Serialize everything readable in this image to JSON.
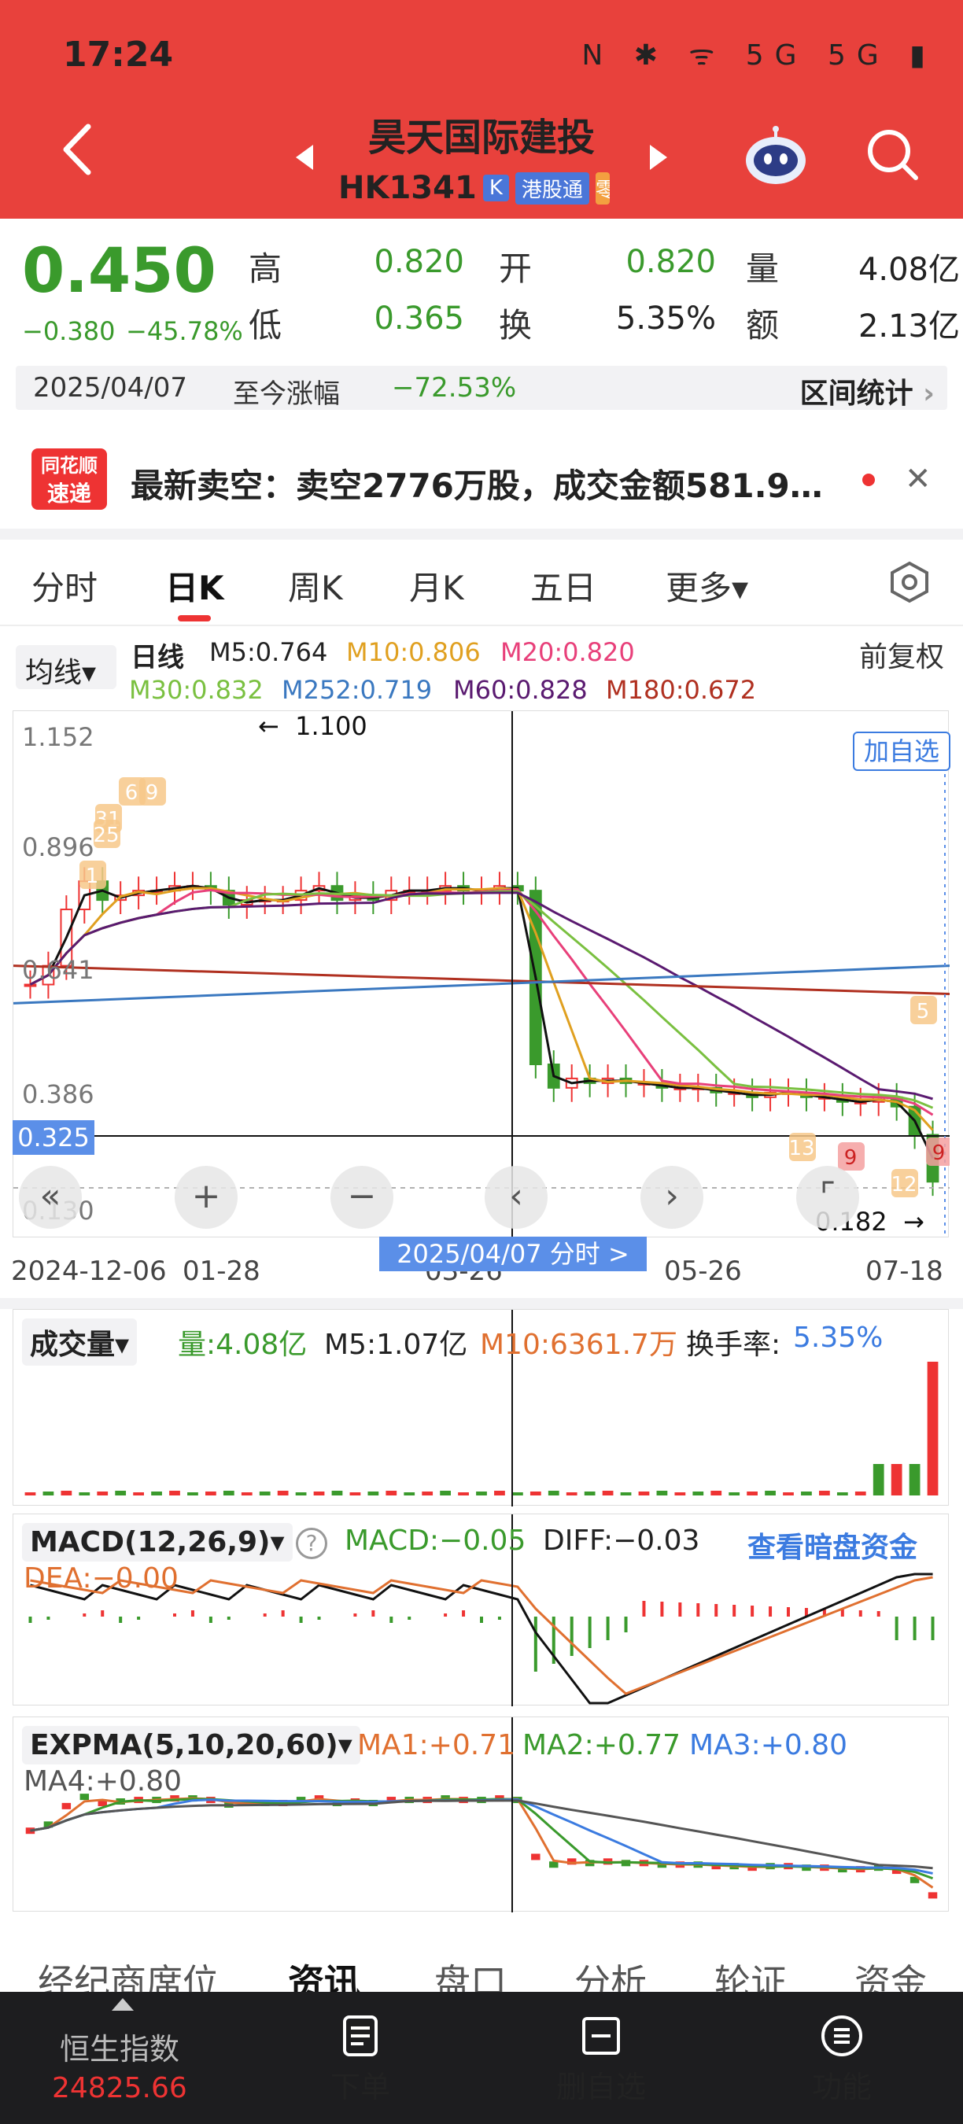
{
  "status": {
    "time": "17:24",
    "icons": "N ✱ ᯤ 5G 5G ▮"
  },
  "header": {
    "stock_name": "昊天国际建投",
    "stock_code": "HK1341",
    "badge_hk": "K",
    "badge_connect": "港股通",
    "badge_extra": "零"
  },
  "quote": {
    "last_price": "0.450",
    "change_abs": "−0.380",
    "change_pct": "−45.78%",
    "high_label": "高",
    "high": "0.820",
    "low_label": "低",
    "low": "0.365",
    "open_label": "开",
    "open": "0.820",
    "turnover_label": "换",
    "turnover": "5.35%",
    "volume_label": "量",
    "volume": "4.08亿",
    "amount_label": "额",
    "amount": "2.13亿"
  },
  "range": {
    "start_date": "2025/04/07",
    "change_label": "至今涨幅",
    "change_value": "−72.53%",
    "stats_label": "区间统计"
  },
  "news": {
    "logo_line1": "同花顺",
    "logo_line2": "速递",
    "text": "最新卖空：卖空2776万股，成交金额581.9…"
  },
  "tabs": {
    "items": [
      "分时",
      "日K",
      "周K",
      "月K",
      "五日",
      "更多▾"
    ],
    "active": "日K"
  },
  "ma_legend": {
    "selector": "均线▾",
    "line_type": "日线",
    "m5": "M5:0.764",
    "m10": "M10:0.806",
    "m20": "M20:0.820",
    "m30": "M30:0.832",
    "m252": "M252:0.719",
    "m60": "M60:0.828",
    "m180": "M180:0.672",
    "adjust": "前复权",
    "colors": {
      "m5": "#111111",
      "m10": "#e0a020",
      "m20": "#e8407a",
      "m30": "#7ac040",
      "m252": "#3a78c0",
      "m60": "#5a1a70",
      "m180": "#b03020"
    }
  },
  "chart": {
    "y_labels": [
      "1.152",
      "0.896",
      "0.641",
      "0.386",
      "0.130"
    ],
    "max_annotation": "1.100",
    "min_annotation": "0.182",
    "cursor_price": "0.325",
    "cursor_date_tag": "2025/04/07  分时  >",
    "add_watch": "加自选",
    "x_labels": [
      "2024-12-06",
      "01-28",
      "03-26",
      "05-26",
      "07-18"
    ],
    "marker_labels": [
      "6",
      "9",
      "31",
      "25",
      "1",
      "5",
      "13",
      "9",
      "12",
      "9"
    ]
  },
  "chart_data": {
    "type": "candlestick",
    "ylim": [
      0.13,
      1.152
    ],
    "x_labels": [
      "2024-12-06",
      "01-28",
      "03-26",
      "05-26",
      "07-18"
    ],
    "close_trend": [
      0.62,
      0.66,
      0.78,
      0.84,
      0.8,
      0.81,
      0.82,
      0.82,
      0.83,
      0.83,
      0.82,
      0.79,
      0.8,
      0.8,
      0.8,
      0.82,
      0.83,
      0.8,
      0.81,
      0.8,
      0.82,
      0.82,
      0.82,
      0.83,
      0.82,
      0.82,
      0.83,
      0.82,
      0.45,
      0.4,
      0.42,
      0.41,
      0.42,
      0.41,
      0.41,
      0.4,
      0.4,
      0.4,
      0.39,
      0.39,
      0.38,
      0.39,
      0.39,
      0.38,
      0.38,
      0.37,
      0.37,
      0.38,
      0.36,
      0.3,
      0.2
    ],
    "ma_last": {
      "M5": 0.764,
      "M10": 0.806,
      "M20": 0.82,
      "M30": 0.832,
      "M252": 0.719,
      "M60": 0.828,
      "M180": 0.672
    }
  },
  "volume_panel": {
    "selector": "成交量▾",
    "vol": "量:4.08亿",
    "m5": "M5:1.07亿",
    "m10": "M10:6361.7万",
    "turnover_label": "换手率:",
    "turnover_value": "5.35%"
  },
  "macd_panel": {
    "selector": "MACD(12,26,9)▾",
    "macd": "MACD:−0.05",
    "diff": "DIFF:−0.03",
    "dea": "DEA:−0.00",
    "dark_pool_link": "查看暗盘资金"
  },
  "expma_panel": {
    "selector": "EXPMA(5,10,20,60)▾",
    "ma1": "MA1:+0.71",
    "ma2": "MA2:+0.77",
    "ma3": "MA3:+0.80",
    "ma4": "MA4:+0.80"
  },
  "info_tabs": {
    "items": [
      "经纪商席位",
      "资讯",
      "盘口",
      "分析",
      "轮证",
      "资金"
    ],
    "active": "资讯"
  },
  "bottom_nav": {
    "index_name": "恒生指数",
    "index_value": "24825.66",
    "order": "下单",
    "remove_watch": "删自选",
    "functions": "功能"
  }
}
